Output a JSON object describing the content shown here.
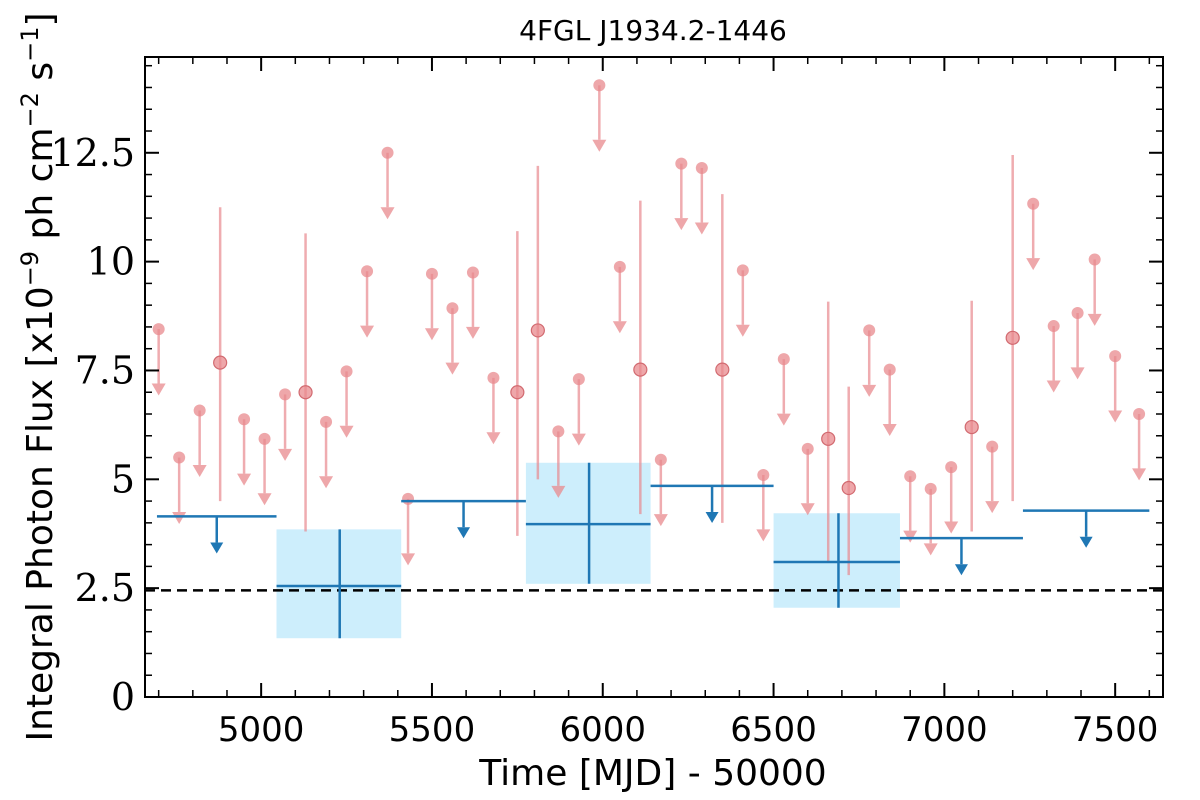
{
  "chart_data": {
    "type": "scatter",
    "title": "4FGL J1934.2-1446",
    "xlabel": "Time [MJD] - 50000",
    "ylabel_main": "Integral Photon Flux [x10",
    "ylabel_exp_m9": "−9",
    "ylabel_mid": " ph cm",
    "ylabel_exp_m2": "−2",
    "ylabel_mid2": " s",
    "ylabel_exp_m1": "−1",
    "ylabel_end": "]",
    "xlim": [
      4660,
      7640
    ],
    "ylim": [
      0,
      14.7
    ],
    "x_ticks": [
      5000,
      5500,
      6000,
      6500,
      7000,
      7500
    ],
    "x_tick_labels": [
      "5000",
      "5500",
      "6000",
      "6500",
      "7000",
      "7500"
    ],
    "y_ticks": [
      0,
      2.5,
      5,
      7.5,
      10,
      12.5
    ],
    "y_tick_labels": [
      "0",
      "2.5",
      "5",
      "7.5",
      "10",
      "12.5"
    ],
    "reference_line": 2.45,
    "colors": {
      "short_bins": "#e8898e",
      "long_bins": "#1f77b4",
      "long_box": "#cdeefc",
      "reference": "#000000"
    },
    "short_bin_upper_limits": [
      {
        "x": 4700,
        "y": 8.45
      },
      {
        "x": 4760,
        "y": 5.5
      },
      {
        "x": 4820,
        "y": 6.58
      },
      {
        "x": 4950,
        "y": 6.38
      },
      {
        "x": 5010,
        "y": 5.93
      },
      {
        "x": 5070,
        "y": 6.95
      },
      {
        "x": 5190,
        "y": 6.32
      },
      {
        "x": 5250,
        "y": 7.48
      },
      {
        "x": 5310,
        "y": 9.78
      },
      {
        "x": 5370,
        "y": 12.5
      },
      {
        "x": 5430,
        "y": 4.55
      },
      {
        "x": 5500,
        "y": 9.72
      },
      {
        "x": 5560,
        "y": 8.93
      },
      {
        "x": 5620,
        "y": 9.75
      },
      {
        "x": 5680,
        "y": 7.33
      },
      {
        "x": 5870,
        "y": 6.1
      },
      {
        "x": 5930,
        "y": 7.3
      },
      {
        "x": 5990,
        "y": 14.05
      },
      {
        "x": 6050,
        "y": 9.88
      },
      {
        "x": 6170,
        "y": 5.45
      },
      {
        "x": 6230,
        "y": 12.25
      },
      {
        "x": 6290,
        "y": 12.15
      },
      {
        "x": 6410,
        "y": 9.8
      },
      {
        "x": 6470,
        "y": 5.1
      },
      {
        "x": 6530,
        "y": 7.76
      },
      {
        "x": 6600,
        "y": 5.7
      },
      {
        "x": 6780,
        "y": 8.42
      },
      {
        "x": 6840,
        "y": 7.52
      },
      {
        "x": 6900,
        "y": 5.07
      },
      {
        "x": 6960,
        "y": 4.78
      },
      {
        "x": 7020,
        "y": 5.28
      },
      {
        "x": 7140,
        "y": 5.75
      },
      {
        "x": 7260,
        "y": 11.33
      },
      {
        "x": 7320,
        "y": 8.52
      },
      {
        "x": 7390,
        "y": 8.82
      },
      {
        "x": 7440,
        "y": 10.05
      },
      {
        "x": 7500,
        "y": 7.83
      },
      {
        "x": 7570,
        "y": 6.5
      }
    ],
    "short_bin_detections": [
      {
        "x": 4880,
        "y": 7.68,
        "ylo": 4.5,
        "yhi": 11.25
      },
      {
        "x": 5130,
        "y": 7.0,
        "ylo": 3.8,
        "yhi": 10.65
      },
      {
        "x": 5750,
        "y": 7.0,
        "ylo": 3.7,
        "yhi": 10.7
      },
      {
        "x": 5810,
        "y": 8.42,
        "ylo": 5.0,
        "yhi": 12.2
      },
      {
        "x": 6110,
        "y": 7.52,
        "ylo": 4.2,
        "yhi": 11.4
      },
      {
        "x": 6350,
        "y": 7.52,
        "ylo": 4.0,
        "yhi": 11.55
      },
      {
        "x": 6660,
        "y": 5.93,
        "ylo": 3.1,
        "yhi": 9.08
      },
      {
        "x": 6720,
        "y": 4.8,
        "ylo": 2.8,
        "yhi": 7.13
      },
      {
        "x": 7080,
        "y": 6.2,
        "ylo": 3.8,
        "yhi": 9.1
      },
      {
        "x": 7200,
        "y": 8.25,
        "ylo": 4.5,
        "yhi": 12.45
      }
    ],
    "long_bin_upper_limits": [
      {
        "x0": 4695,
        "x1": 5045,
        "y": 4.15
      },
      {
        "x0": 5410,
        "x1": 5775,
        "y": 4.5
      },
      {
        "x0": 6140,
        "x1": 6500,
        "y": 4.85
      },
      {
        "x0": 6870,
        "x1": 7230,
        "y": 3.65
      },
      {
        "x0": 7230,
        "x1": 7600,
        "y": 4.28
      }
    ],
    "long_bin_detections": [
      {
        "x0": 5045,
        "x1": 5410,
        "xc": 5230,
        "y": 2.55,
        "ylo": 1.35,
        "yhi": 3.85
      },
      {
        "x0": 5775,
        "x1": 6140,
        "xc": 5960,
        "y": 3.97,
        "ylo": 2.6,
        "yhi": 5.38
      },
      {
        "x0": 6500,
        "x1": 6870,
        "xc": 6690,
        "y": 3.1,
        "ylo": 2.05,
        "yhi": 4.22
      }
    ]
  }
}
